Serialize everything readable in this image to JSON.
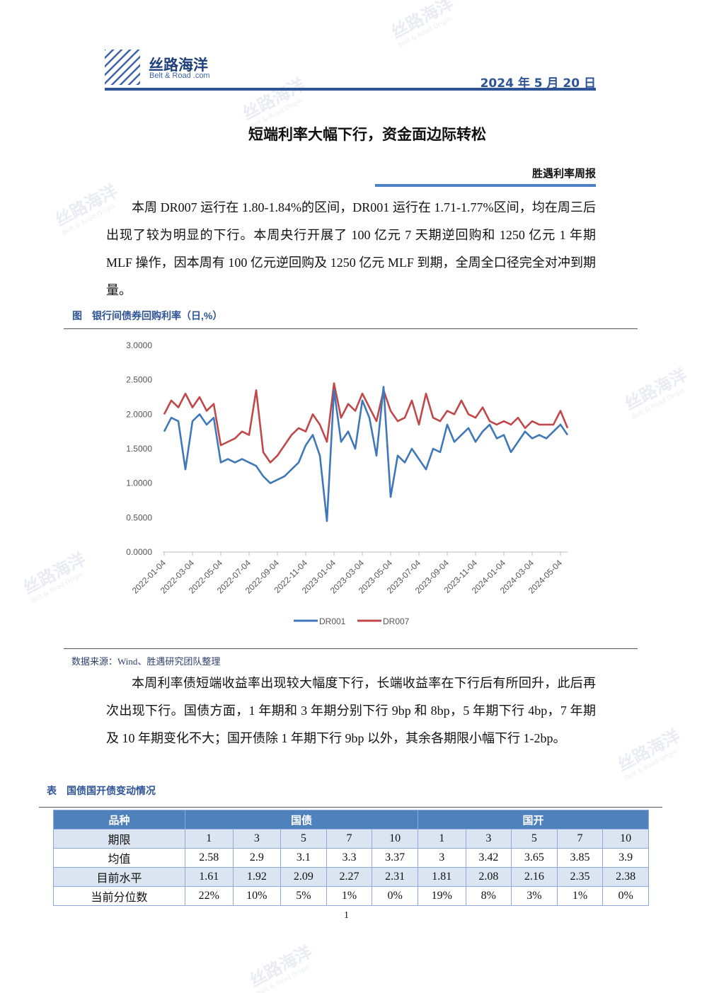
{
  "header": {
    "logo_text": "丝路海洋",
    "logo_sub": "Belt & Road .com",
    "date": "2024 年 5 月 20 日"
  },
  "watermark": {
    "text": "丝路海洋",
    "sub": "Belt & Road Origin"
  },
  "title": "短端利率大幅下行，资金面边际转松",
  "report_name": "胜遇利率周报",
  "paragraphs": [
    "本周 DR007 运行在 1.80-1.84%的区间，DR001 运行在 1.71-1.77%区间，均在周三后出现了较为明显的下行。本周央行开展了 100 亿元 7 天期逆回购和 1250 亿元 1 年期 MLF 操作，因本周有 100 亿元逆回购及 1250 亿元 MLF 到期，全周全口径完全对冲到期量。",
    "本周利率债短端收益率出现较大幅度下行，长端收益率在下行后有所回升，此后再次出现下行。国债方面，1 年期和 3 年期分别下行 9bp 和 8bp，5 年期下行 4bp，7 年期及 10 年期变化不大；国开债除 1 年期下行 9bp 以外，其余各期限小幅下行 1-2bp。"
  ],
  "figure_caption": "图　银行间债券回购利率（日,%）",
  "source": "数据来源：Wind、胜遇研究团队整理",
  "chart_data": {
    "type": "line",
    "categories": [
      "2022-01-04",
      null,
      null,
      null,
      "2022-03-04",
      null,
      null,
      null,
      "2022-05-04",
      null,
      null,
      null,
      "2022-07-04",
      null,
      null,
      null,
      "2022-09-04",
      null,
      null,
      null,
      "2022-11-04",
      null,
      null,
      null,
      "2023-01-04",
      null,
      null,
      null,
      "2023-03-04",
      null,
      null,
      null,
      "2023-05-04",
      null,
      null,
      null,
      "2023-07-04",
      null,
      null,
      null,
      "2023-09-04",
      null,
      null,
      null,
      "2023-11-04",
      null,
      null,
      null,
      "2024-01-04",
      null,
      null,
      null,
      "2024-03-04",
      null,
      null,
      null,
      "2024-05-04",
      null
    ],
    "series": [
      {
        "name": "DR001",
        "color": "#3f78b8",
        "values": [
          1.75,
          1.95,
          1.9,
          1.2,
          1.9,
          2.0,
          1.85,
          1.95,
          1.3,
          1.35,
          1.3,
          1.35,
          1.3,
          1.25,
          1.1,
          1.0,
          1.05,
          1.1,
          1.2,
          1.3,
          1.55,
          1.7,
          1.4,
          0.45,
          2.35,
          1.6,
          1.75,
          1.5,
          2.2,
          1.95,
          1.4,
          2.4,
          0.8,
          1.4,
          1.3,
          1.5,
          1.35,
          1.2,
          1.5,
          1.45,
          1.85,
          1.6,
          1.7,
          1.8,
          1.6,
          1.75,
          1.85,
          1.65,
          1.7,
          1.45,
          1.6,
          1.75,
          1.65,
          1.7,
          1.65,
          1.75,
          1.85,
          1.7
        ]
      },
      {
        "name": "DR007",
        "color": "#c0474a",
        "values": [
          2.0,
          2.2,
          2.1,
          2.3,
          2.1,
          2.25,
          2.05,
          2.15,
          1.55,
          1.6,
          1.65,
          1.75,
          1.7,
          2.35,
          1.45,
          1.3,
          1.4,
          1.55,
          1.7,
          1.8,
          1.75,
          2.0,
          1.85,
          1.6,
          2.45,
          1.95,
          2.15,
          2.05,
          2.3,
          2.1,
          1.9,
          2.35,
          2.05,
          1.9,
          1.95,
          2.2,
          1.85,
          2.3,
          1.95,
          1.9,
          2.05,
          2.0,
          2.2,
          2.0,
          1.95,
          2.1,
          1.9,
          1.85,
          1.9,
          1.85,
          1.95,
          1.8,
          1.9,
          1.85,
          1.85,
          1.85,
          2.05,
          1.8
        ]
      }
    ],
    "ylim": [
      0,
      3
    ],
    "yticks": [
      {
        "value": 0,
        "label": "0.0000"
      },
      {
        "value": 0.5,
        "label": "0.5000"
      },
      {
        "value": 1,
        "label": "1.0000"
      },
      {
        "value": 1.5,
        "label": "1.5000"
      },
      {
        "value": 2,
        "label": "2.0000"
      },
      {
        "value": 2.5,
        "label": "2.5000"
      },
      {
        "value": 3,
        "label": "3.0000"
      }
    ],
    "grid": false,
    "legend": "bottom"
  },
  "table_caption": "表　国债国开债变动情况",
  "table": {
    "header": [
      "品种",
      "国债",
      "国开"
    ],
    "rows": [
      [
        "期限",
        "1",
        "3",
        "5",
        "7",
        "10",
        "1",
        "3",
        "5",
        "7",
        "10"
      ],
      [
        "均值",
        "2.58",
        "2.9",
        "3.1",
        "3.3",
        "3.37",
        "3",
        "3.42",
        "3.65",
        "3.85",
        "3.9"
      ],
      [
        "目前水平",
        "1.61",
        "1.92",
        "2.09",
        "2.27",
        "2.31",
        "1.81",
        "2.08",
        "2.16",
        "2.35",
        "2.38"
      ],
      [
        "当前分位数",
        "22%",
        "10%",
        "5%",
        "1%",
        "0%",
        "19%",
        "8%",
        "3%",
        "1%",
        "0%"
      ]
    ]
  },
  "page_number": "1"
}
